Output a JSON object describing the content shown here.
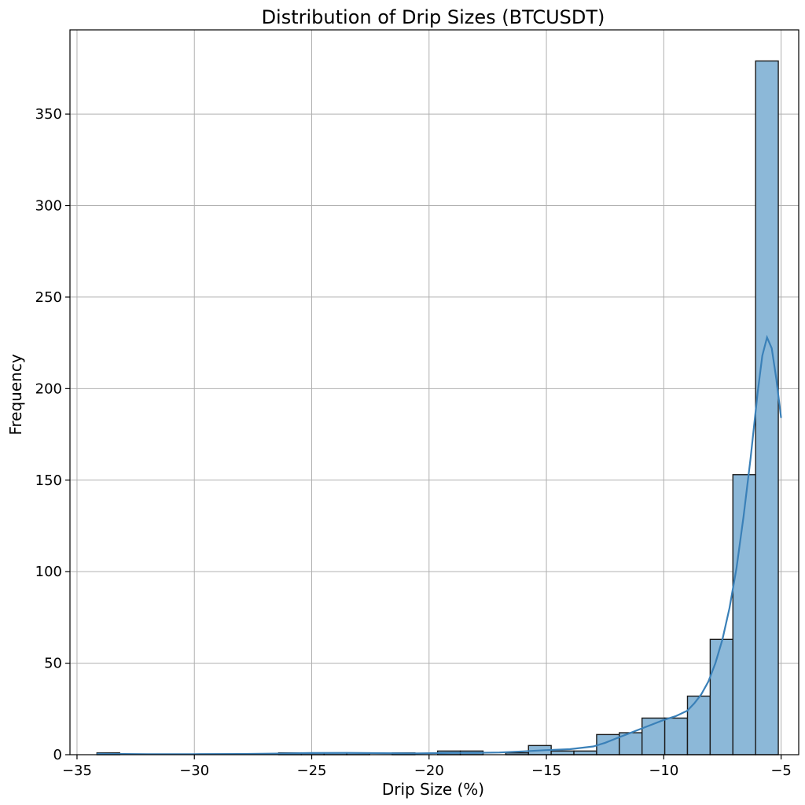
{
  "chart_data": {
    "type": "histogram",
    "title": "Distribution of Drip Sizes (BTCUSDT)",
    "xlabel": "Drip Size (%)",
    "ylabel": "Frequency",
    "xlim": [
      -35.3,
      -4.25
    ],
    "ylim": [
      0,
      396
    ],
    "xticks": [
      -35,
      -30,
      -25,
      -20,
      -15,
      -10,
      -5
    ],
    "xtick_labels": [
      "−35",
      "−30",
      "−25",
      "−20",
      "−15",
      "−10",
      "−5"
    ],
    "yticks": [
      0,
      50,
      100,
      150,
      200,
      250,
      300,
      350
    ],
    "ytick_labels": [
      "0",
      "50",
      "100",
      "150",
      "200",
      "250",
      "300",
      "350"
    ],
    "grid": true,
    "bin_start": -34.15,
    "bin_width": 0.9677,
    "counts": [
      1,
      0,
      0,
      0,
      0,
      0,
      0,
      0,
      1,
      1,
      1,
      1,
      0,
      1,
      0,
      2,
      2,
      0,
      1,
      5,
      2,
      2,
      11,
      12,
      20,
      20,
      32,
      63,
      153,
      379
    ],
    "kde": {
      "x": [
        -34.15,
        -32.0,
        -30.0,
        -28.0,
        -26.5,
        -25.0,
        -23.5,
        -22.0,
        -20.5,
        -19.0,
        -18.0,
        -17.0,
        -16.0,
        -15.0,
        -14.0,
        -13.0,
        -12.5,
        -12.0,
        -11.5,
        -11.0,
        -10.5,
        -10.0,
        -9.5,
        -9.0,
        -8.7,
        -8.4,
        -8.1,
        -7.8,
        -7.5,
        -7.2,
        -6.9,
        -6.6,
        -6.3,
        -6.0,
        -5.8,
        -5.6,
        -5.4,
        -5.2,
        -5.0
      ],
      "y": [
        0.5,
        0.3,
        0.3,
        0.4,
        0.6,
        0.9,
        1.0,
        0.8,
        0.7,
        1.0,
        1.0,
        1.2,
        1.8,
        2.5,
        3.0,
        4.5,
        6.5,
        9.0,
        11.5,
        14.0,
        16.5,
        19.0,
        21.0,
        24.0,
        28.0,
        33.0,
        40.0,
        50.0,
        63.0,
        80.0,
        102.0,
        130.0,
        162.0,
        198.0,
        218.0,
        228.0,
        222.0,
        205.0,
        184.0
      ]
    },
    "colors": {
      "bar_fill": "#8cb8d8",
      "bar_edge": "#1a1a1a",
      "kde_line": "#3a80b8",
      "grid": "#b0b0b0"
    }
  }
}
